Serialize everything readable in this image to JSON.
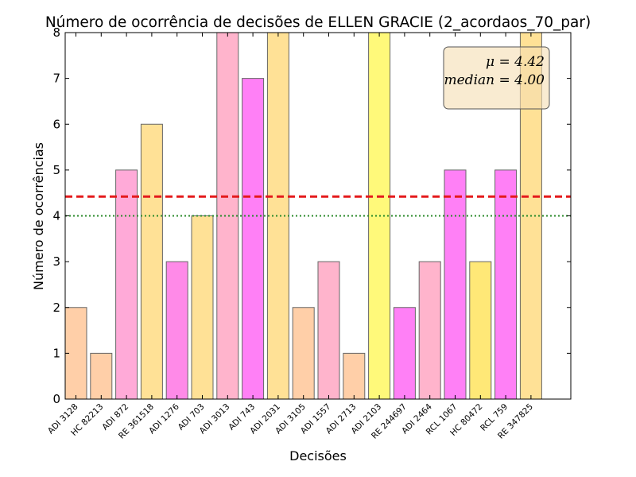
{
  "chart_data": {
    "type": "bar",
    "title": "Número de ocorrência de decisões de ELLEN GRACIE (2_acordaos_70_par)",
    "xlabel": "Decisões",
    "ylabel": "Número de ocorrências",
    "ylim": [
      0,
      8
    ],
    "yticks": [
      "0",
      "1",
      "2",
      "3",
      "4",
      "5",
      "6",
      "7",
      "8"
    ],
    "categories": [
      "ADI 3128",
      "HC 82213",
      "ADI 872",
      "RE 361518",
      "ADI 1276",
      "ADI 703",
      "ADI 3013",
      "ADI 743",
      "ADI 2031",
      "ADI 3105",
      "ADI 1557",
      "ADI 2713",
      "ADI 2103",
      "RE 244697",
      "ADI 2464",
      "RCL 1067",
      "HC 80472",
      "RCL 759",
      "RE 347825"
    ],
    "values": [
      2,
      1,
      5,
      6,
      3,
      4,
      8,
      7,
      8,
      2,
      3,
      1,
      8,
      2,
      3,
      5,
      3,
      5,
      8
    ],
    "bar_colors": [
      "#ffcfa8",
      "#ffcfa8",
      "#ffaad8",
      "#ffe196",
      "#ff8ae8",
      "#ffe196",
      "#ffb4cc",
      "#ff80f6",
      "#ffe196",
      "#ffcfa8",
      "#ffb4cc",
      "#ffcfa8",
      "#fff97a",
      "#ff80f6",
      "#ffb4cc",
      "#ff80f6",
      "#ffe877",
      "#ff80f6",
      "#ffe196"
    ],
    "grid": false,
    "mean": 4.42,
    "median": 4.0,
    "mean_line_color": "#e41a1c",
    "median_line_color": "#2a8a2a",
    "stats_box": {
      "mean_text": "μ = 4.42",
      "median_text": "median = 4.00",
      "position": "top-right",
      "background": "#f5deb3"
    }
  }
}
